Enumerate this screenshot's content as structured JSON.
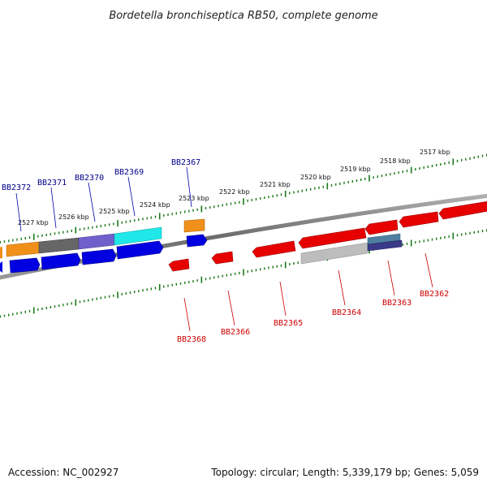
{
  "title": "Bordetella bronchiseptica RB50, complete genome",
  "footer": {
    "accession": "Accession: NC_002927",
    "summary": "Topology: circular; Length: 5,339,179 bp; Genes: 5,059"
  },
  "map": {
    "kbp_ticks": [
      "2517 kbp",
      "2518 kbp",
      "2519 kbp",
      "2520 kbp",
      "2521 kbp",
      "2522 kbp",
      "2523 kbp",
      "2524 kbp",
      "2525 kbp",
      "2526 kbp",
      "2527 kbp"
    ],
    "forward_gene_labels": [
      "BB2372",
      "BB2371",
      "BB2370",
      "BB2369",
      "BB2367"
    ],
    "reverse_gene_labels": [
      "BB2368",
      "BB2366",
      "BB2365",
      "BB2364",
      "BB2363",
      "BB2362"
    ]
  },
  "colors": {
    "forward_strand": "#0000e0",
    "reverse_strand": "#e60000",
    "forward_label": "#00008b",
    "reverse_label": "#cc0000",
    "backbone": "#7a7a7a",
    "tick_marks": "#1a7a1a",
    "orange_feature": "#f0901a",
    "gray_feature": "#666666",
    "purple_feature": "#7060cc",
    "cyan_feature": "#20e8e8",
    "light_gray_feature": "#bdbdbd",
    "steel_feature": "#4f7fa0",
    "navy_feature": "#3a3a88"
  }
}
